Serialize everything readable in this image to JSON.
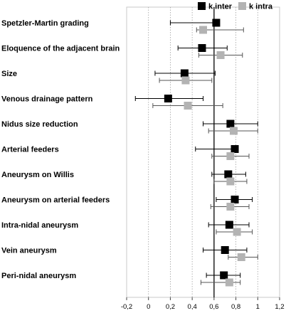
{
  "chart_data": {
    "type": "forest",
    "xlim": [
      -0.2,
      1.2
    ],
    "x_ticks": [
      "-0,2",
      "0",
      "0,2",
      "0,4",
      "0,6",
      "0,8",
      "1",
      "1,2"
    ],
    "x_tick_values": [
      -0.2,
      0,
      0.2,
      0.4,
      0.6,
      0.8,
      1.0,
      1.2
    ],
    "reference_line": 0.6,
    "grid": "vertical dotted",
    "legend_position": "top-right",
    "series": [
      {
        "name": "k inter",
        "color": "#000000"
      },
      {
        "name": "k intra",
        "color": "#b3b3b3"
      }
    ],
    "categories": [
      "Spetzler-Martin grading",
      "Eloquence of the adjacent brain",
      "Size",
      "Venous drainage pattern",
      "Nidus size reduction",
      "Arterial feeders",
      "Aneurysm on Willis",
      "Aneurysm on arterial feeders",
      "Intra-nidal aneurysm",
      "Vein aneurysm",
      "Peri-nidal aneurysm"
    ],
    "inter": [
      {
        "value": 0.62,
        "low": 0.2,
        "high": 0.65
      },
      {
        "value": 0.49,
        "low": 0.27,
        "high": 0.72
      },
      {
        "value": 0.33,
        "low": 0.06,
        "high": 0.61
      },
      {
        "value": 0.18,
        "low": -0.12,
        "high": 0.5
      },
      {
        "value": 0.75,
        "low": 0.5,
        "high": 1.0
      },
      {
        "value": 0.79,
        "low": 0.43,
        "high": 0.82
      },
      {
        "value": 0.73,
        "low": 0.58,
        "high": 0.89
      },
      {
        "value": 0.79,
        "low": 0.62,
        "high": 0.95
      },
      {
        "value": 0.74,
        "low": 0.55,
        "high": 0.92
      },
      {
        "value": 0.7,
        "low": 0.5,
        "high": 0.9
      },
      {
        "value": 0.69,
        "low": 0.53,
        "high": 0.84
      }
    ],
    "intra": [
      {
        "value": 0.5,
        "low": 0.44,
        "high": 0.87
      },
      {
        "value": 0.66,
        "low": 0.46,
        "high": 0.86
      },
      {
        "value": 0.34,
        "low": 0.1,
        "high": 0.58
      },
      {
        "value": 0.36,
        "low": 0.04,
        "high": 0.68
      },
      {
        "value": 0.78,
        "low": 0.55,
        "high": 1.0
      },
      {
        "value": 0.75,
        "low": 0.58,
        "high": 0.92
      },
      {
        "value": 0.75,
        "low": 0.6,
        "high": 0.9
      },
      {
        "value": 0.75,
        "low": 0.57,
        "high": 0.92
      },
      {
        "value": 0.81,
        "low": 0.62,
        "high": 0.95
      },
      {
        "value": 0.85,
        "low": 0.73,
        "high": 1.0
      },
      {
        "value": 0.74,
        "low": 0.48,
        "high": 0.84
      }
    ]
  }
}
